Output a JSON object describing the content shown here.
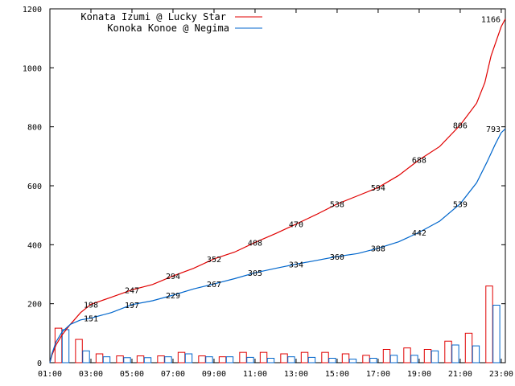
{
  "chart_data": {
    "type": "line",
    "xlim": [
      1,
      23.2
    ],
    "ylim": [
      0,
      1200
    ],
    "grid": false,
    "legend_position": "top-left",
    "x_ticks": [
      "01:00",
      "03:00",
      "05:00",
      "07:00",
      "09:00",
      "11:00",
      "13:00",
      "15:00",
      "17:00",
      "19:00",
      "21:00",
      "23:00"
    ],
    "y_ticks": [
      "0",
      "200",
      "400",
      "600",
      "800",
      "1000",
      "1200"
    ],
    "series": [
      {
        "name": "Konata Izumi @ Lucky Star",
        "color": "#e00000",
        "cumulative": [
          [
            1.0,
            0
          ],
          [
            1.1,
            25
          ],
          [
            1.3,
            60
          ],
          [
            1.6,
            95
          ],
          [
            2.0,
            130
          ],
          [
            2.5,
            170
          ],
          [
            3.0,
            198
          ],
          [
            4.0,
            222
          ],
          [
            5.0,
            247
          ],
          [
            6.0,
            265
          ],
          [
            7.0,
            294
          ],
          [
            8.0,
            320
          ],
          [
            9.0,
            352
          ],
          [
            10.0,
            375
          ],
          [
            11.0,
            408
          ],
          [
            12.0,
            438
          ],
          [
            13.0,
            470
          ],
          [
            14.0,
            503
          ],
          [
            15.0,
            538
          ],
          [
            16.0,
            566
          ],
          [
            17.0,
            594
          ],
          [
            18.0,
            635
          ],
          [
            19.0,
            688
          ],
          [
            20.0,
            733
          ],
          [
            21.0,
            806
          ],
          [
            21.8,
            880
          ],
          [
            22.2,
            950
          ],
          [
            22.5,
            1040
          ],
          [
            22.8,
            1100
          ],
          [
            23.0,
            1140
          ],
          [
            23.2,
            1166
          ]
        ],
        "labels": [
          [
            3,
            198
          ],
          [
            5,
            247
          ],
          [
            7,
            294
          ],
          [
            9,
            352
          ],
          [
            11,
            408
          ],
          [
            13,
            470
          ],
          [
            15,
            538
          ],
          [
            17,
            594
          ],
          [
            19,
            688
          ],
          [
            21,
            806
          ],
          [
            23,
            1166
          ]
        ],
        "hist_x": [
          1.25,
          2.25,
          3.25,
          4.25,
          5.25,
          6.25,
          7.25,
          8.25,
          9.25,
          10.25,
          11.25,
          12.25,
          13.25,
          14.25,
          15.25,
          16.25,
          17.25,
          18.25,
          19.25,
          20.25,
          21.25,
          22.25
        ],
        "hist_values": [
          117,
          79,
          30,
          23,
          23,
          23,
          35,
          23,
          20,
          35,
          35,
          30,
          35,
          35,
          30,
          25,
          45,
          50,
          45,
          73,
          100,
          260
        ]
      },
      {
        "name": "Konoka Konoe @ Negima",
        "color": "#0066cc",
        "cumulative": [
          [
            1.0,
            0
          ],
          [
            1.1,
            30
          ],
          [
            1.3,
            70
          ],
          [
            1.6,
            105
          ],
          [
            2.0,
            130
          ],
          [
            2.5,
            145
          ],
          [
            3.0,
            151
          ],
          [
            4.0,
            170
          ],
          [
            5.0,
            197
          ],
          [
            6.0,
            210
          ],
          [
            7.0,
            229
          ],
          [
            8.0,
            250
          ],
          [
            9.0,
            267
          ],
          [
            10.0,
            285
          ],
          [
            11.0,
            305
          ],
          [
            12.0,
            320
          ],
          [
            13.0,
            334
          ],
          [
            14.0,
            347
          ],
          [
            15.0,
            360
          ],
          [
            16.0,
            370
          ],
          [
            17.0,
            388
          ],
          [
            18.0,
            410
          ],
          [
            19.0,
            442
          ],
          [
            20.0,
            480
          ],
          [
            21.0,
            539
          ],
          [
            21.8,
            610
          ],
          [
            22.3,
            680
          ],
          [
            22.7,
            740
          ],
          [
            23.0,
            780
          ],
          [
            23.2,
            793
          ]
        ],
        "labels": [
          [
            3,
            151
          ],
          [
            5,
            197
          ],
          [
            7,
            229
          ],
          [
            9,
            267
          ],
          [
            11,
            305
          ],
          [
            13,
            334
          ],
          [
            15,
            360
          ],
          [
            17,
            388
          ],
          [
            19,
            442
          ],
          [
            21,
            539
          ],
          [
            23,
            793
          ]
        ],
        "hist_x": [
          1.6,
          2.6,
          3.6,
          4.6,
          5.6,
          6.6,
          7.6,
          8.6,
          9.6,
          10.6,
          11.6,
          12.6,
          13.6,
          14.6,
          15.6,
          16.6,
          17.6,
          18.6,
          19.6,
          20.6,
          21.6,
          22.6
        ],
        "hist_values": [
          112,
          40,
          20,
          17,
          17,
          20,
          30,
          20,
          20,
          18,
          15,
          20,
          18,
          15,
          12,
          15,
          25,
          25,
          40,
          60,
          57,
          195
        ]
      }
    ]
  }
}
